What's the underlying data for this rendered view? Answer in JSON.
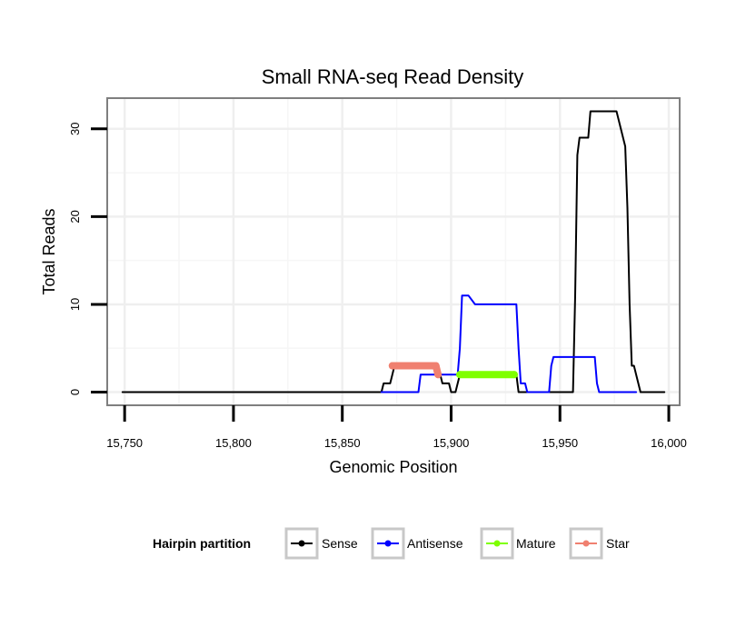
{
  "chart_data": {
    "type": "line",
    "title": "Small RNA-seq Read Density",
    "xlabel": "Genomic Position",
    "ylabel": "Total Reads",
    "xlim": [
      15742,
      16005
    ],
    "ylim": [
      -1.5,
      33.5
    ],
    "x_ticks": [
      15750,
      15800,
      15850,
      15900,
      15950,
      16000
    ],
    "x_tick_labels": [
      "15,750",
      "15,800",
      "15,850",
      "15,900",
      "15,950",
      "16,000"
    ],
    "y_ticks": [
      0,
      10,
      20,
      30
    ],
    "y_tick_labels": [
      "0",
      "10",
      "20",
      "30"
    ],
    "grid": true,
    "legend_title": "Hairpin partition",
    "legend_position": "bottom",
    "series": [
      {
        "name": "Sense",
        "color": "#000000",
        "x": [
          15749,
          15868,
          15869,
          15872,
          15873,
          15874,
          15876,
          15877,
          15879,
          15885,
          15892,
          15894,
          15895,
          15896,
          15899,
          15900,
          15901,
          15902,
          15903,
          15904,
          15930,
          15931,
          15932,
          15956,
          15957,
          15958,
          15959,
          15962,
          15963,
          15964,
          15975,
          15976,
          15979,
          15980,
          15981,
          15982,
          15983,
          15984,
          15985,
          15986,
          15987,
          15998
        ],
        "y": [
          0,
          0,
          1,
          1,
          2,
          3,
          3,
          3,
          3,
          3,
          3,
          3,
          2,
          1,
          1,
          0,
          0,
          0,
          1,
          2,
          2,
          0,
          0,
          0,
          11,
          27,
          29,
          29,
          29,
          32,
          32,
          32,
          29,
          28,
          21,
          10,
          3,
          3,
          2,
          1,
          0,
          0
        ]
      },
      {
        "name": "Antisense",
        "color": "#0000FF",
        "x": [
          15868,
          15885,
          15886,
          15902,
          15903,
          15904,
          15905,
          15907,
          15908,
          15911,
          15912,
          15930,
          15931,
          15932,
          15934,
          15935,
          15945,
          15946,
          15947,
          15966,
          15967,
          15968,
          15985
        ],
        "y": [
          0,
          0,
          2,
          2,
          2,
          5,
          11,
          11,
          11,
          10,
          10,
          10,
          5,
          1,
          1,
          0,
          0,
          3,
          4,
          4,
          1,
          0,
          0
        ]
      },
      {
        "name": "Mature",
        "color": "#7FFF00",
        "x": [
          15904,
          15929
        ],
        "y": [
          2,
          2
        ]
      },
      {
        "name": "Star",
        "color": "#F08070",
        "x": [
          15873,
          15893,
          15894
        ],
        "y": [
          3,
          3,
          2
        ]
      }
    ]
  }
}
